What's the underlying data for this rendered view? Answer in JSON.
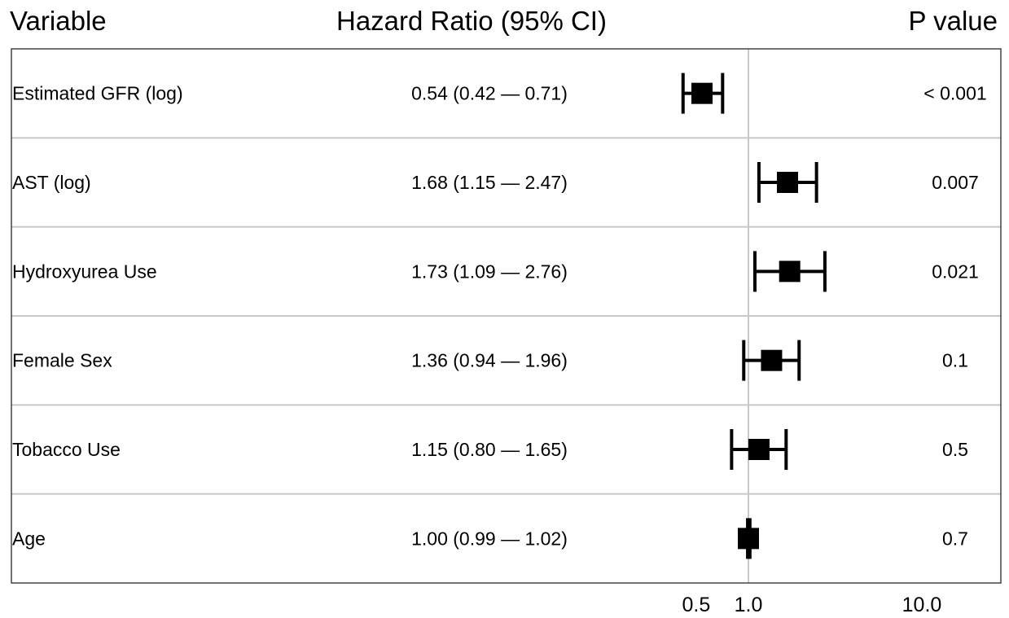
{
  "headers": {
    "variable": "Variable",
    "hazard_ratio": "Hazard Ratio (95% CI)",
    "p_value": "P value"
  },
  "colors": {
    "marker": "#000000",
    "grid": "#c8c8c8",
    "frame": "#444444",
    "background": "#ffffff"
  },
  "chart_data": {
    "type": "forest",
    "x_scale": "log10",
    "xlim": [
      0.3,
      15
    ],
    "xticks": [
      0.5,
      1.0,
      10.0
    ],
    "xtick_labels": [
      "0.5",
      "1.0",
      "10.0"
    ],
    "reference_line": 1.0,
    "rows": [
      {
        "variable": "Estimated GFR (log)",
        "hr": 0.54,
        "lo": 0.42,
        "hi": 0.71,
        "hr_text": "0.54 (0.42 — 0.71)",
        "p": "< 0.001"
      },
      {
        "variable": "AST (log)",
        "hr": 1.68,
        "lo": 1.15,
        "hi": 2.47,
        "hr_text": "1.68 (1.15 — 2.47)",
        "p": "0.007"
      },
      {
        "variable": "Hydroxyurea Use",
        "hr": 1.73,
        "lo": 1.09,
        "hi": 2.76,
        "hr_text": "1.73 (1.09 — 2.76)",
        "p": "0.021"
      },
      {
        "variable": "Female Sex",
        "hr": 1.36,
        "lo": 0.94,
        "hi": 1.96,
        "hr_text": "1.36 (0.94 — 1.96)",
        "p": "0.1"
      },
      {
        "variable": "Tobacco Use",
        "hr": 1.15,
        "lo": 0.8,
        "hi": 1.65,
        "hr_text": "1.15 (0.80 — 1.65)",
        "p": "0.5"
      },
      {
        "variable": "Age",
        "hr": 1.0,
        "lo": 0.99,
        "hi": 1.02,
        "hr_text": "1.00 (0.99 — 1.02)",
        "p": "0.7"
      }
    ]
  }
}
